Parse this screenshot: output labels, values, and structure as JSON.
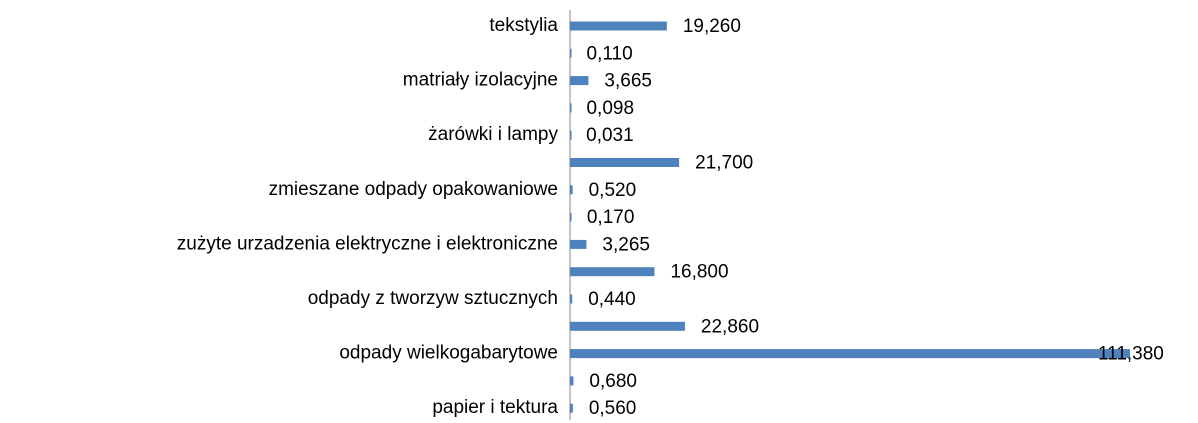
{
  "chart_data": {
    "type": "bar",
    "orientation": "horizontal",
    "color": "#4f81bd",
    "categories": [
      "tekstylia",
      null,
      "matriały izolacyjne",
      null,
      "żarówki i lampy",
      null,
      "zmieszane odpady opakowaniowe",
      null,
      "zużyte urzadzenia elektryczne i elektroniczne",
      null,
      "odpady z tworzyw sztucznych",
      null,
      "odpady wielkogabarytowe",
      null,
      "papier i tektura"
    ],
    "values": [
      19.26,
      0.11,
      3.665,
      0.098,
      0.031,
      21.7,
      0.52,
      0.17,
      3.265,
      16.8,
      0.44,
      22.86,
      111.38,
      0.68,
      0.56
    ],
    "value_labels": [
      "19,260",
      "0,110",
      "3,665",
      "0,098",
      "0,031",
      "21,700",
      "0,520",
      "0,170",
      "3,265",
      "16,800",
      "0,440",
      "22,860",
      "111,380",
      "0,680",
      "0,560"
    ]
  }
}
